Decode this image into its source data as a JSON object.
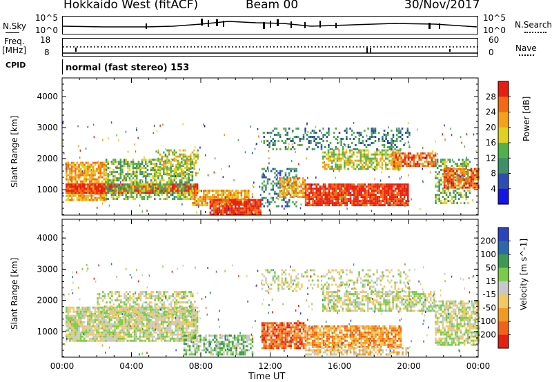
{
  "header": {
    "title": "Hokkaido West (fitACF)",
    "beam": "Beam 00",
    "date": "30/Nov/2017"
  },
  "strip": {
    "nsky_label": "N.Sky",
    "nsky_top": "10^5",
    "nsky_bottom": "10^0",
    "nsearch_label": "N.Search",
    "nsearch_top": "10^5",
    "nsearch_bottom": "10^0",
    "freq_label": "Freq.",
    "freq_unit": "[MHz]",
    "freq_top": "18",
    "freq_bottom": "8",
    "nave_label": "Nave",
    "nave_top": "60",
    "nave_bottom": "0",
    "cpid_label": "CPID",
    "cpid_text": "normal (fast stereo) 153"
  },
  "chart_data": [
    {
      "type": "heatmap",
      "name": "power",
      "ylabel": "Slant Range [km]",
      "colorbar_label": "Power [dB]",
      "ylim": [
        180,
        4600
      ],
      "yticks": [
        1000,
        2000,
        3000,
        4000
      ],
      "xticks": [
        "00:00",
        "04:00",
        "08:00",
        "12:00",
        "16:00",
        "20:00",
        "00:00"
      ],
      "xlim_hours": [
        0,
        24
      ],
      "colorbar_ticks": [
        "4",
        "8",
        "12",
        "16",
        "20",
        "24",
        "28"
      ],
      "colorbar_colors": [
        "#1515e8",
        "#2d4db5",
        "#3f8f6b",
        "#52b04a",
        "#e0d020",
        "#f4a018",
        "#f26a10",
        "#e81e10"
      ],
      "bands": [
        {
          "t0": 0.2,
          "t1": 2.5,
          "r0": 700,
          "r1": 1900,
          "level": 5,
          "density": 0.8
        },
        {
          "t0": 0.2,
          "t1": 7.8,
          "r0": 900,
          "r1": 1200,
          "level": 7,
          "density": 0.95
        },
        {
          "t0": 2.5,
          "t1": 7.5,
          "r0": 700,
          "r1": 2000,
          "level": 3,
          "density": 0.6
        },
        {
          "t0": 5.5,
          "t1": 7.8,
          "r0": 1500,
          "r1": 2300,
          "level": 4,
          "density": 0.5
        },
        {
          "t0": 7.5,
          "t1": 10.8,
          "r0": 500,
          "r1": 1000,
          "level": 5,
          "density": 0.8
        },
        {
          "t0": 8.5,
          "t1": 11.5,
          "r0": 200,
          "r1": 700,
          "level": 7,
          "density": 0.9
        },
        {
          "t0": 11.5,
          "t1": 13.5,
          "r0": 500,
          "r1": 1700,
          "level": 2,
          "density": 0.4
        },
        {
          "t0": 12.5,
          "t1": 14.0,
          "r0": 800,
          "r1": 1400,
          "level": 5,
          "density": 0.7
        },
        {
          "t0": 14.0,
          "t1": 20.0,
          "r0": 500,
          "r1": 1200,
          "level": 7,
          "density": 0.9
        },
        {
          "t0": 15.0,
          "t1": 19.5,
          "r0": 1700,
          "r1": 2300,
          "level": 4,
          "density": 0.6
        },
        {
          "t0": 19.0,
          "t1": 21.5,
          "r0": 1800,
          "r1": 2200,
          "level": 6,
          "density": 0.7
        },
        {
          "t0": 11.5,
          "t1": 20.0,
          "r0": 2300,
          "r1": 3000,
          "level": 2,
          "density": 0.3
        },
        {
          "t0": 21.5,
          "t1": 23.5,
          "r0": 600,
          "r1": 2000,
          "level": 3,
          "density": 0.5
        },
        {
          "t0": 22.0,
          "t1": 24.0,
          "r0": 1100,
          "r1": 1700,
          "level": 6,
          "density": 0.8
        }
      ]
    },
    {
      "type": "heatmap",
      "name": "velocity",
      "ylabel": "Slant Range [km]",
      "xlabel": "Time UT",
      "colorbar_label": "Velocity [m s^-1]",
      "ylim": [
        180,
        4600
      ],
      "yticks": [
        1000,
        2000,
        3000,
        4000
      ],
      "xticks": [
        "00:00",
        "04:00",
        "08:00",
        "12:00",
        "16:00",
        "20:00",
        "00:00"
      ],
      "xlim_hours": [
        0,
        24
      ],
      "colorbar_ticks": [
        "200",
        "100",
        "50",
        "15",
        "-15",
        "-50",
        "-100",
        "-200"
      ],
      "colorbar_colors": [
        "#2a44c0",
        "#2a6aa8",
        "#3a9a52",
        "#79cc48",
        "#c8c8c8",
        "#f4c860",
        "#f29a20",
        "#f2601a",
        "#e81e10"
      ],
      "bands": [
        {
          "t0": 0.2,
          "t1": 7.8,
          "r0": 700,
          "r1": 1800,
          "level": 4,
          "density": 0.85
        },
        {
          "t0": 2.0,
          "t1": 7.5,
          "r0": 1500,
          "r1": 2300,
          "level": 4,
          "density": 0.5
        },
        {
          "t0": 7.0,
          "t1": 11.0,
          "r0": 300,
          "r1": 900,
          "level": 3,
          "density": 0.6
        },
        {
          "t0": 11.5,
          "t1": 14.0,
          "r0": 500,
          "r1": 1300,
          "level": 7,
          "density": 0.8
        },
        {
          "t0": 14.0,
          "t1": 19.5,
          "r0": 500,
          "r1": 1200,
          "level": 6,
          "density": 0.8
        },
        {
          "t0": 14.0,
          "t1": 20.0,
          "r0": 300,
          "r1": 500,
          "level": 5,
          "density": 0.6
        },
        {
          "t0": 15.0,
          "t1": 21.5,
          "r0": 1700,
          "r1": 2300,
          "level": 4,
          "density": 0.6
        },
        {
          "t0": 11.5,
          "t1": 20.0,
          "r0": 2300,
          "r1": 3000,
          "level": 4,
          "density": 0.3
        },
        {
          "t0": 21.5,
          "t1": 24.0,
          "r0": 600,
          "r1": 2000,
          "level": 4,
          "density": 0.7
        }
      ]
    }
  ],
  "time_axis_label": "Time UT",
  "time_ticks": [
    "00:00",
    "04:00",
    "08:00",
    "12:00",
    "16:00",
    "20:00",
    "00:00"
  ]
}
